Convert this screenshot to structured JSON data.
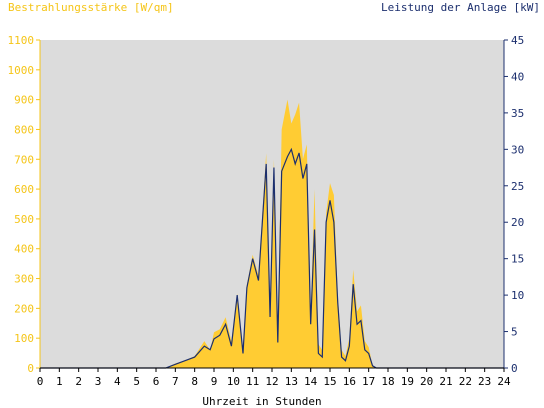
{
  "chart_data": {
    "type": "area",
    "title_left": "Bestrahlungsstärke [W/qm]",
    "title_right": "Leistung der Anlage [kW]",
    "xlabel": "Uhrzeit in Stunden",
    "colors": {
      "irradiance": "#ffcc33",
      "power": "#1c2f6e",
      "plot_bg": "#dcdcdc",
      "left_axis": "#f5c518",
      "right_axis": "#1c2f6e"
    },
    "x_ticks": [
      "0",
      "1",
      "2",
      "3",
      "4",
      "5",
      "6",
      "7",
      "8",
      "9",
      "10",
      "11",
      "12",
      "13",
      "14",
      "15",
      "16",
      "17",
      "18",
      "19",
      "20",
      "21",
      "22",
      "23",
      "24"
    ],
    "y_left_ticks": [
      "0",
      "100",
      "200",
      "300",
      "400",
      "500",
      "600",
      "700",
      "800",
      "900",
      "1000",
      "1100"
    ],
    "y_right_ticks": [
      "0",
      "5",
      "10",
      "15",
      "20",
      "25",
      "30",
      "35",
      "40",
      "45"
    ],
    "xlim": [
      0,
      24
    ],
    "ylim_left": [
      0,
      1100
    ],
    "ylim_right": [
      0,
      45
    ],
    "series": [
      {
        "name": "Bestrahlungsstärke [W/qm]",
        "axis": "left",
        "x": [
          0,
          6.5,
          7.0,
          7.5,
          8.0,
          8.5,
          8.8,
          9.0,
          9.3,
          9.6,
          9.9,
          10.2,
          10.5,
          10.7,
          11.0,
          11.3,
          11.5,
          11.7,
          11.9,
          12.1,
          12.3,
          12.5,
          12.8,
          13.0,
          13.2,
          13.4,
          13.6,
          13.8,
          14.0,
          14.2,
          14.4,
          14.6,
          14.8,
          15.0,
          15.2,
          15.4,
          15.6,
          15.8,
          16.0,
          16.2,
          16.4,
          16.6,
          16.8,
          17.0,
          17.2,
          17.4,
          17.6,
          17.8,
          18.0,
          18.2,
          18.5,
          24
        ],
        "y": [
          0,
          0,
          15,
          25,
          40,
          90,
          60,
          120,
          130,
          170,
          90,
          250,
          60,
          280,
          380,
          310,
          520,
          720,
          200,
          700,
          110,
          800,
          900,
          820,
          850,
          890,
          700,
          750,
          180,
          600,
          80,
          60,
          520,
          620,
          580,
          250,
          60,
          40,
          100,
          330,
          190,
          210,
          90,
          70,
          10,
          0,
          0,
          0,
          0,
          0,
          0,
          0
        ]
      },
      {
        "name": "Leistung der Anlage [kW]",
        "axis": "right",
        "x": [
          0,
          6.5,
          7.0,
          7.5,
          8.0,
          8.5,
          8.8,
          9.0,
          9.3,
          9.6,
          9.9,
          10.2,
          10.5,
          10.7,
          11.0,
          11.3,
          11.5,
          11.7,
          11.9,
          12.1,
          12.3,
          12.5,
          12.8,
          13.0,
          13.2,
          13.4,
          13.6,
          13.8,
          14.0,
          14.2,
          14.4,
          14.6,
          14.8,
          15.0,
          15.2,
          15.4,
          15.6,
          15.8,
          16.0,
          16.2,
          16.4,
          16.6,
          16.8,
          17.0,
          17.2,
          17.4,
          17.6,
          17.8,
          18.0,
          18.2,
          18.5,
          24
        ],
        "y": [
          0,
          0,
          0.5,
          1.0,
          1.5,
          3.0,
          2.5,
          4.0,
          4.5,
          6.0,
          3.0,
          10.0,
          2.0,
          11.0,
          15.0,
          12.0,
          20.0,
          28.0,
          7.0,
          27.5,
          3.5,
          27.0,
          29.0,
          30.0,
          28.0,
          29.5,
          26.0,
          28.0,
          6.0,
          19.0,
          2.0,
          1.5,
          20.0,
          23.0,
          20.0,
          9.0,
          1.5,
          1.0,
          3.0,
          11.5,
          6.0,
          6.5,
          2.5,
          2.0,
          0.3,
          0,
          0,
          0,
          0,
          0,
          0,
          0
        ]
      }
    ]
  }
}
